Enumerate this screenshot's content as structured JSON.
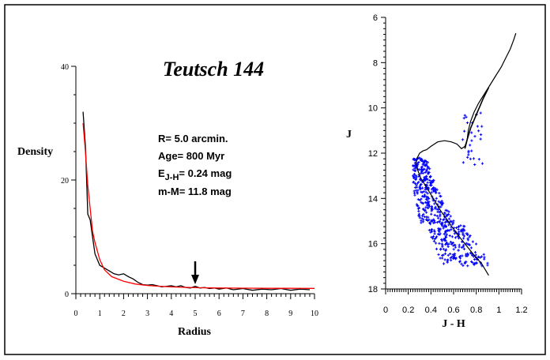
{
  "chart_data": [
    {
      "type": "line",
      "title": "Teutsch 144",
      "xlabel": "Radius",
      "ylabel": "Density",
      "xlim": [
        0,
        10
      ],
      "ylim": [
        0,
        40
      ],
      "x_ticks": [
        "0",
        "1",
        "2",
        "3",
        "4",
        "5",
        "6",
        "7",
        "8",
        "9",
        "10"
      ],
      "y_ticks": [
        "0",
        "20",
        "40"
      ],
      "annotations": {
        "radius": "R= 5.0 arcmin.",
        "age": "Age= 800 Myr",
        "reddening_prefix": "E",
        "reddening_sub": "J-H",
        "reddening_suffix": "= 0.24 mag",
        "distance_modulus": "m-M= 11.8 mag"
      },
      "arrow_x": 5.0,
      "colors": {
        "observed": "#000000",
        "fit": "#ff0000"
      },
      "series": [
        {
          "x": [
            0.3,
            0.4,
            0.5,
            0.6,
            0.7,
            0.8,
            1.0,
            1.2,
            1.4,
            1.6,
            1.8,
            2.0,
            2.2,
            2.4,
            2.6,
            2.8,
            3.0,
            3.2,
            3.4,
            3.6,
            3.8,
            4.0,
            4.2,
            4.4,
            4.6,
            4.8,
            5.0,
            5.2,
            5.4,
            5.6,
            5.8,
            6.0,
            6.3,
            6.6,
            7.0,
            7.4,
            7.8,
            8.2,
            8.6,
            9.0,
            9.4,
            9.8
          ],
          "y": [
            32,
            26,
            14,
            13,
            10,
            7,
            5,
            4.5,
            4,
            3.5,
            3.3,
            3.5,
            3,
            2.6,
            2,
            1.6,
            1.5,
            1.6,
            1.4,
            1.2,
            1.3,
            1.4,
            1.2,
            1.4,
            1.1,
            1.0,
            1.3,
            1.0,
            1.1,
            0.9,
            1.0,
            0.8,
            1.0,
            0.7,
            0.9,
            0.6,
            0.8,
            0.7,
            0.9,
            0.6,
            0.8,
            0.7
          ]
        },
        {
          "x": [
            0.3,
            0.4,
            0.5,
            0.6,
            0.7,
            0.8,
            1.0,
            1.2,
            1.5,
            2.0,
            2.5,
            3.0,
            3.5,
            4.0,
            5.0,
            6.0,
            7.0,
            8.0,
            9.0,
            10.0
          ],
          "y": [
            30,
            25,
            19,
            15,
            11,
            9,
            6,
            4.2,
            3.0,
            2.2,
            1.7,
            1.45,
            1.3,
            1.2,
            1.05,
            1.0,
            0.97,
            0.95,
            0.94,
            0.93
          ]
        }
      ]
    },
    {
      "type": "scatter",
      "xlabel": "J - H",
      "ylabel": "J",
      "xlim": [
        0,
        1.2
      ],
      "ylim": [
        18,
        6
      ],
      "x_ticks": [
        "0",
        "0.2",
        "0.4",
        "0.6",
        "0.8",
        "1",
        "1.2"
      ],
      "y_ticks": [
        "6",
        "8",
        "10",
        "12",
        "14",
        "16",
        "18"
      ],
      "colors": {
        "points": "#0000ff",
        "isochrone": "#000000"
      },
      "scatter_regions": [
        {
          "n": 520,
          "x_range": [
            0.24,
            0.9
          ],
          "y_range": [
            12.2,
            17.0
          ],
          "shape": "main-sequence"
        },
        {
          "n": 30,
          "x_range": [
            0.68,
            0.86
          ],
          "y_range": [
            10.1,
            12.6
          ],
          "shape": "giants"
        }
      ],
      "isochrone": {
        "x": [
          0.91,
          0.85,
          0.78,
          0.7,
          0.62,
          0.55,
          0.48,
          0.42,
          0.36,
          0.31,
          0.28,
          0.27,
          0.28,
          0.3,
          0.33,
          0.36,
          0.4,
          0.46,
          0.52,
          0.58,
          0.63,
          0.67,
          0.7,
          0.72,
          0.73,
          0.75,
          0.78,
          0.82,
          0.87,
          0.92,
          0.97,
          1.02,
          1.06,
          1.1,
          1.13,
          1.15
        ],
        "y": [
          17.4,
          16.9,
          16.5,
          16.0,
          15.5,
          15.0,
          14.5,
          14.0,
          13.5,
          13.1,
          12.7,
          12.4,
          12.2,
          12.0,
          11.9,
          11.85,
          11.7,
          11.5,
          11.45,
          11.5,
          11.6,
          11.8,
          11.7,
          11.4,
          11.0,
          10.6,
          10.2,
          9.8,
          9.4,
          9.0,
          8.6,
          8.2,
          7.8,
          7.4,
          7.0,
          6.7
        ]
      },
      "isochrone_branch": {
        "x": [
          0.7,
          0.72,
          0.75,
          0.8,
          0.86,
          0.91
        ],
        "y": [
          11.8,
          11.4,
          10.9,
          10.3,
          9.6,
          9.1
        ]
      }
    }
  ]
}
